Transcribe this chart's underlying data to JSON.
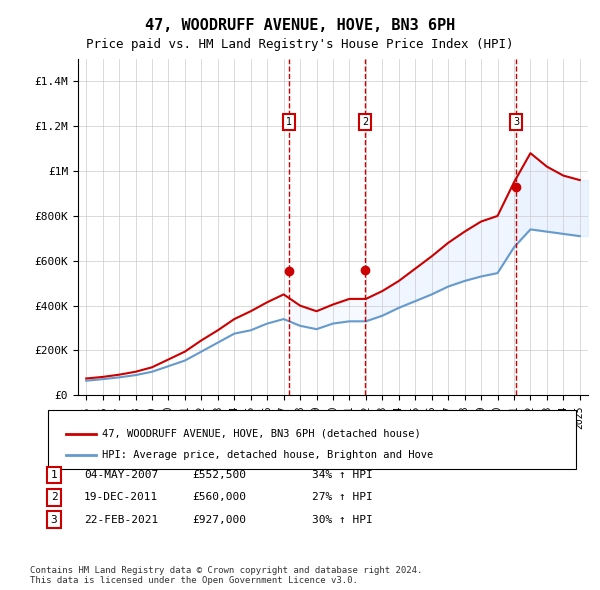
{
  "title": "47, WOODRUFF AVENUE, HOVE, BN3 6PH",
  "subtitle": "Price paid vs. HM Land Registry's House Price Index (HPI)",
  "legend_line1": "47, WOODRUFF AVENUE, HOVE, BN3 6PH (detached house)",
  "legend_line2": "HPI: Average price, detached house, Brighton and Hove",
  "footer1": "Contains HM Land Registry data © Crown copyright and database right 2024.",
  "footer2": "This data is licensed under the Open Government Licence v3.0.",
  "transactions": [
    {
      "num": 1,
      "date": "04-MAY-2007",
      "price": 552500,
      "pct": "34%",
      "dir": "↑"
    },
    {
      "num": 2,
      "date": "19-DEC-2011",
      "price": 560000,
      "pct": "27%",
      "dir": "↑"
    },
    {
      "num": 3,
      "date": "22-FEB-2021",
      "price": 927000,
      "pct": "30%",
      "dir": "↑"
    }
  ],
  "transaction_years": [
    2007.35,
    2011.97,
    2021.14
  ],
  "ylim": [
    0,
    1500000
  ],
  "yticks": [
    0,
    200000,
    400000,
    600000,
    800000,
    1000000,
    1200000,
    1400000
  ],
  "ytick_labels": [
    "£0",
    "£200K",
    "£400K",
    "£600K",
    "£800K",
    "£1M",
    "£1.2M",
    "£1.4M"
  ],
  "line_color_red": "#cc0000",
  "line_color_blue": "#6699cc",
  "shade_color": "#ddeeff",
  "vline_color": "#cc0000",
  "marker_box_color": "#cc0000",
  "background_color": "#ffffff",
  "grid_color": "#cccccc",
  "hpi_data": {
    "years": [
      1995,
      1996,
      1997,
      1998,
      1999,
      2000,
      2001,
      2002,
      2003,
      2004,
      2005,
      2006,
      2007,
      2008,
      2009,
      2010,
      2011,
      2012,
      2013,
      2014,
      2015,
      2016,
      2017,
      2018,
      2019,
      2020,
      2021,
      2022,
      2023,
      2024,
      2025
    ],
    "values": [
      65000,
      72000,
      80000,
      90000,
      105000,
      130000,
      155000,
      195000,
      235000,
      275000,
      290000,
      320000,
      340000,
      310000,
      295000,
      320000,
      330000,
      330000,
      355000,
      390000,
      420000,
      450000,
      485000,
      510000,
      530000,
      545000,
      660000,
      740000,
      730000,
      720000,
      710000
    ]
  },
  "price_data": {
    "years": [
      1995,
      1996,
      1997,
      1998,
      1999,
      2000,
      2001,
      2002,
      2003,
      2004,
      2005,
      2006,
      2007,
      2008,
      2009,
      2010,
      2011,
      2012,
      2013,
      2014,
      2015,
      2016,
      2017,
      2018,
      2019,
      2020,
      2021,
      2022,
      2023,
      2024,
      2025
    ],
    "values": [
      75000,
      82000,
      92000,
      105000,
      125000,
      160000,
      195000,
      245000,
      290000,
      340000,
      375000,
      415000,
      450000,
      400000,
      375000,
      405000,
      430000,
      430000,
      465000,
      510000,
      565000,
      620000,
      680000,
      730000,
      775000,
      800000,
      950000,
      1080000,
      1020000,
      980000,
      960000
    ]
  }
}
